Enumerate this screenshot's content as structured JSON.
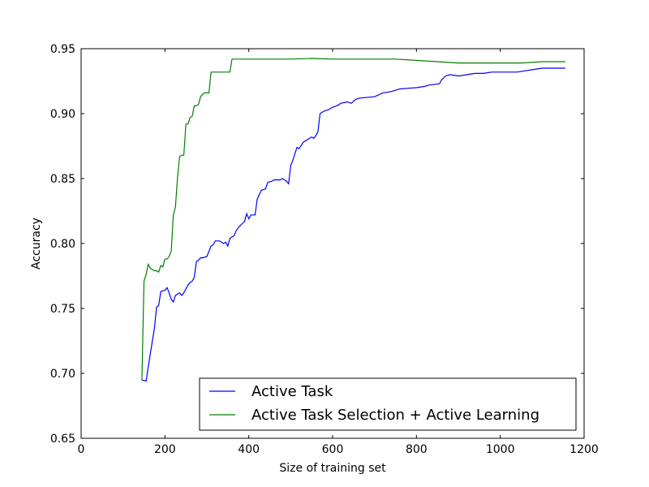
{
  "chart_data": {
    "type": "line",
    "title": "",
    "xlabel": "Size of training set",
    "ylabel": "Accuracy",
    "xlim": [
      0,
      1200
    ],
    "ylim": [
      0.65,
      0.95
    ],
    "xticks": [
      0,
      200,
      400,
      600,
      800,
      1000,
      1200
    ],
    "yticks": [
      0.65,
      0.7,
      0.75,
      0.8,
      0.85,
      0.9,
      0.95
    ],
    "xtick_labels": [
      "0",
      "200",
      "400",
      "600",
      "800",
      "1000",
      "1200"
    ],
    "ytick_labels": [
      "0.65",
      "0.70",
      "0.75",
      "0.80",
      "0.85",
      "0.90",
      "0.95"
    ],
    "grid": false,
    "legend_position": "lower-right",
    "series": [
      {
        "name": "Active Task",
        "color": "#0000ff",
        "points": [
          [
            145,
            0.695
          ],
          [
            155,
            0.694
          ],
          [
            165,
            0.715
          ],
          [
            175,
            0.735
          ],
          [
            180,
            0.751
          ],
          [
            185,
            0.752
          ],
          [
            190,
            0.763
          ],
          [
            200,
            0.764
          ],
          [
            205,
            0.766
          ],
          [
            210,
            0.762
          ],
          [
            215,
            0.757
          ],
          [
            220,
            0.755
          ],
          [
            225,
            0.76
          ],
          [
            230,
            0.761
          ],
          [
            235,
            0.762
          ],
          [
            240,
            0.76
          ],
          [
            245,
            0.762
          ],
          [
            250,
            0.765
          ],
          [
            255,
            0.768
          ],
          [
            260,
            0.77
          ],
          [
            265,
            0.771
          ],
          [
            270,
            0.774
          ],
          [
            275,
            0.786
          ],
          [
            280,
            0.787
          ],
          [
            285,
            0.789
          ],
          [
            290,
            0.789
          ],
          [
            300,
            0.79
          ],
          [
            305,
            0.794
          ],
          [
            310,
            0.798
          ],
          [
            315,
            0.799
          ],
          [
            320,
            0.802
          ],
          [
            330,
            0.802
          ],
          [
            340,
            0.8
          ],
          [
            345,
            0.801
          ],
          [
            350,
            0.798
          ],
          [
            355,
            0.804
          ],
          [
            365,
            0.806
          ],
          [
            370,
            0.81
          ],
          [
            380,
            0.814
          ],
          [
            390,
            0.817
          ],
          [
            395,
            0.823
          ],
          [
            400,
            0.819
          ],
          [
            405,
            0.822
          ],
          [
            415,
            0.822
          ],
          [
            420,
            0.834
          ],
          [
            430,
            0.841
          ],
          [
            440,
            0.842
          ],
          [
            445,
            0.847
          ],
          [
            455,
            0.848
          ],
          [
            460,
            0.849
          ],
          [
            475,
            0.849
          ],
          [
            480,
            0.85
          ],
          [
            490,
            0.848
          ],
          [
            495,
            0.846
          ],
          [
            500,
            0.86
          ],
          [
            505,
            0.864
          ],
          [
            510,
            0.869
          ],
          [
            515,
            0.874
          ],
          [
            520,
            0.873
          ],
          [
            530,
            0.878
          ],
          [
            540,
            0.88
          ],
          [
            550,
            0.882
          ],
          [
            555,
            0.881
          ],
          [
            560,
            0.883
          ],
          [
            565,
            0.886
          ],
          [
            570,
            0.9
          ],
          [
            580,
            0.902
          ],
          [
            590,
            0.903
          ],
          [
            600,
            0.905
          ],
          [
            610,
            0.906
          ],
          [
            620,
            0.908
          ],
          [
            635,
            0.909
          ],
          [
            645,
            0.908
          ],
          [
            655,
            0.911
          ],
          [
            665,
            0.912
          ],
          [
            700,
            0.913
          ],
          [
            720,
            0.916
          ],
          [
            740,
            0.917
          ],
          [
            750,
            0.918
          ],
          [
            760,
            0.919
          ],
          [
            800,
            0.92
          ],
          [
            820,
            0.921
          ],
          [
            830,
            0.922
          ],
          [
            855,
            0.923
          ],
          [
            860,
            0.926
          ],
          [
            870,
            0.929
          ],
          [
            880,
            0.93
          ],
          [
            900,
            0.929
          ],
          [
            920,
            0.93
          ],
          [
            940,
            0.931
          ],
          [
            960,
            0.931
          ],
          [
            980,
            0.932
          ],
          [
            1000,
            0.932
          ],
          [
            1020,
            0.932
          ],
          [
            1040,
            0.932
          ],
          [
            1060,
            0.933
          ],
          [
            1080,
            0.934
          ],
          [
            1100,
            0.935
          ],
          [
            1120,
            0.935
          ],
          [
            1140,
            0.935
          ],
          [
            1155,
            0.935
          ]
        ]
      },
      {
        "name": "Active Task Selection + Active Learning",
        "color": "#008000",
        "points": [
          [
            145,
            0.695
          ],
          [
            150,
            0.771
          ],
          [
            155,
            0.776
          ],
          [
            160,
            0.784
          ],
          [
            165,
            0.781
          ],
          [
            170,
            0.78
          ],
          [
            175,
            0.779
          ],
          [
            180,
            0.779
          ],
          [
            185,
            0.778
          ],
          [
            190,
            0.783
          ],
          [
            195,
            0.782
          ],
          [
            200,
            0.788
          ],
          [
            205,
            0.788
          ],
          [
            210,
            0.79
          ],
          [
            215,
            0.794
          ],
          [
            220,
            0.822
          ],
          [
            225,
            0.828
          ],
          [
            230,
            0.851
          ],
          [
            235,
            0.867
          ],
          [
            240,
            0.868
          ],
          [
            245,
            0.868
          ],
          [
            250,
            0.892
          ],
          [
            255,
            0.892
          ],
          [
            260,
            0.897
          ],
          [
            265,
            0.898
          ],
          [
            270,
            0.906
          ],
          [
            275,
            0.906
          ],
          [
            280,
            0.907
          ],
          [
            285,
            0.913
          ],
          [
            290,
            0.915
          ],
          [
            295,
            0.916
          ],
          [
            305,
            0.916
          ],
          [
            310,
            0.932
          ],
          [
            320,
            0.932
          ],
          [
            330,
            0.932
          ],
          [
            340,
            0.932
          ],
          [
            355,
            0.932
          ],
          [
            360,
            0.942
          ],
          [
            380,
            0.942
          ],
          [
            400,
            0.942
          ],
          [
            450,
            0.942
          ],
          [
            500,
            0.942
          ],
          [
            550,
            0.9425
          ],
          [
            600,
            0.942
          ],
          [
            650,
            0.942
          ],
          [
            700,
            0.942
          ],
          [
            750,
            0.942
          ],
          [
            800,
            0.941
          ],
          [
            850,
            0.94
          ],
          [
            900,
            0.939
          ],
          [
            950,
            0.939
          ],
          [
            1000,
            0.939
          ],
          [
            1050,
            0.939
          ],
          [
            1100,
            0.94
          ],
          [
            1155,
            0.94
          ]
        ]
      }
    ]
  }
}
